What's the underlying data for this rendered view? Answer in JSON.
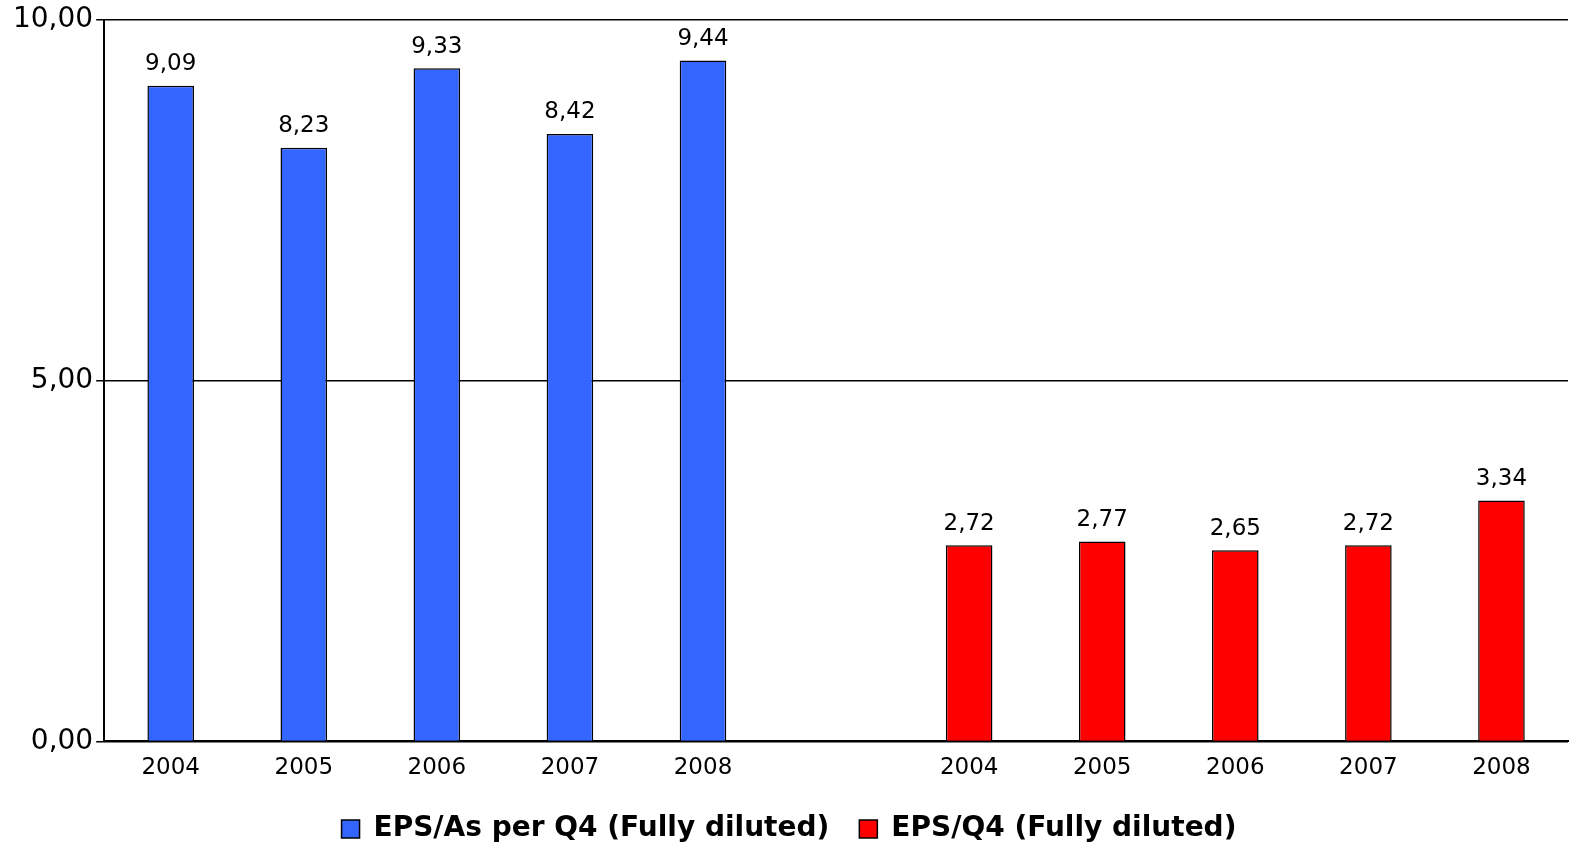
{
  "chart_data": {
    "type": "bar",
    "categories": [
      "2004",
      "2005",
      "2006",
      "2007",
      "2008",
      null,
      "2004",
      "2005",
      "2006",
      "2007",
      "2008"
    ],
    "series": [
      {
        "name": "EPS/As per Q4 (Fully diluted)",
        "color": "#3366ff",
        "values": [
          9.09,
          8.23,
          9.33,
          8.42,
          9.44,
          null,
          null,
          null,
          null,
          null,
          null
        ],
        "value_labels": [
          "9,09",
          "8,23",
          "9,33",
          "8,42",
          "9,44",
          null,
          null,
          null,
          null,
          null,
          null
        ]
      },
      {
        "name": "EPS/Q4 (Fully diluted)",
        "color": "#ff0000",
        "values": [
          null,
          null,
          null,
          null,
          null,
          null,
          2.72,
          2.77,
          2.65,
          2.72,
          3.34
        ],
        "value_labels": [
          null,
          null,
          null,
          null,
          null,
          null,
          "2,72",
          "2,77",
          "2,65",
          "2,72",
          "3,34"
        ]
      }
    ],
    "ylim": [
      0,
      10
    ],
    "yticks": [
      {
        "value": 0,
        "label": "0,00"
      },
      {
        "value": 5,
        "label": "5,00"
      },
      {
        "value": 10,
        "label": "10,00"
      }
    ],
    "grid": "y",
    "legend": "bottom"
  }
}
